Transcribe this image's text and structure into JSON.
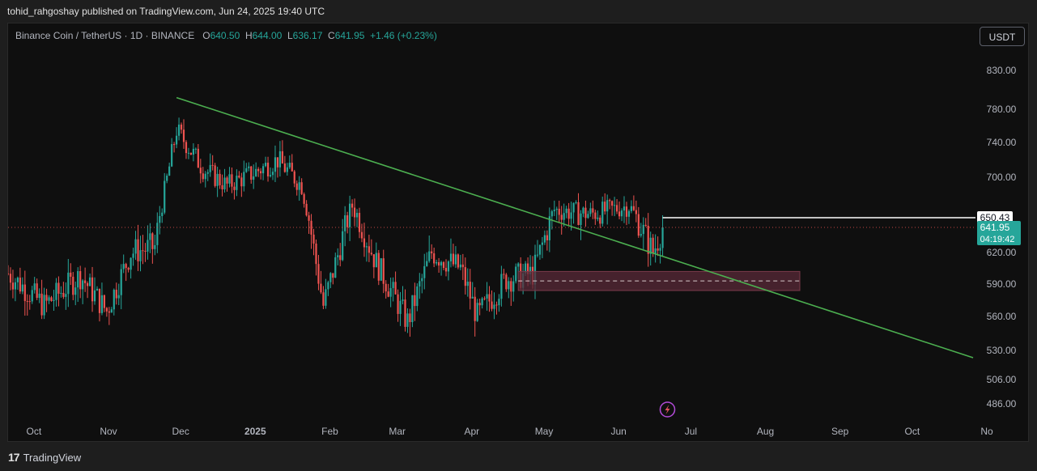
{
  "header": {
    "published_text": "tohid_rahgoshay published on TradingView.com, Jun 24, 2025 19:40 UTC"
  },
  "legend": {
    "symbol": "Binance Coin / TetherUS · 1D · BINANCE",
    "open_label": "O",
    "open": "640.50",
    "high_label": "H",
    "high": "644.00",
    "low_label": "L",
    "low": "636.17",
    "close_label": "C",
    "close": "641.95",
    "change": "+1.46 (+0.23%)"
  },
  "currency_button": "USDT",
  "footer": {
    "logo_mark": "17",
    "logo_text": "TradingView"
  },
  "colors": {
    "up": "#26a69a",
    "down": "#ef5350",
    "trendline": "#4caf50",
    "zone_fill": "#5a2a38",
    "background": "#0f0f0f",
    "price_tag": "#26a69a"
  },
  "chart_data": {
    "type": "candlestick",
    "title": "Binance Coin / TetherUS · 1D · BINANCE",
    "x_tick_labels": [
      "Oct",
      "Nov",
      "Dec",
      "2025",
      "Feb",
      "Mar",
      "Apr",
      "May",
      "Jun",
      "Jul",
      "Aug",
      "Sep",
      "Oct",
      "No"
    ],
    "y_tick_labels": [
      "830.00",
      "780.00",
      "740.00",
      "700.00",
      "620.00",
      "590.00",
      "560.00",
      "530.00",
      "506.00",
      "486.00"
    ],
    "y_range": [
      470,
      860
    ],
    "x_range": [
      "2024-09-25",
      "2025-11-01"
    ],
    "close_series_monthly": [
      {
        "date": "2024-09-25",
        "value": 600
      },
      {
        "date": "2024-10-10",
        "value": 570
      },
      {
        "date": "2024-10-25",
        "value": 598
      },
      {
        "date": "2024-11-05",
        "value": 565
      },
      {
        "date": "2024-11-15",
        "value": 620
      },
      {
        "date": "2024-11-25",
        "value": 625
      },
      {
        "date": "2024-12-04",
        "value": 755
      },
      {
        "date": "2024-12-15",
        "value": 710
      },
      {
        "date": "2024-12-25",
        "value": 690
      },
      {
        "date": "2025-01-05",
        "value": 705
      },
      {
        "date": "2025-01-15",
        "value": 720
      },
      {
        "date": "2025-01-25",
        "value": 690
      },
      {
        "date": "2025-02-03",
        "value": 570
      },
      {
        "date": "2025-02-15",
        "value": 665
      },
      {
        "date": "2025-02-25",
        "value": 610
      },
      {
        "date": "2025-03-10",
        "value": 555
      },
      {
        "date": "2025-03-20",
        "value": 620
      },
      {
        "date": "2025-04-01",
        "value": 605
      },
      {
        "date": "2025-04-08",
        "value": 560
      },
      {
        "date": "2025-04-20",
        "value": 595
      },
      {
        "date": "2025-05-01",
        "value": 600
      },
      {
        "date": "2025-05-10",
        "value": 660
      },
      {
        "date": "2025-05-25",
        "value": 655
      },
      {
        "date": "2025-06-10",
        "value": 665
      },
      {
        "date": "2025-06-20",
        "value": 620
      },
      {
        "date": "2025-06-24",
        "value": 641.95
      }
    ],
    "trendline": {
      "start": {
        "date": "2024-12-04",
        "value": 795
      },
      "end": {
        "date": "2025-10-31",
        "value": 524
      }
    },
    "horizontal_level": {
      "value": 650.43,
      "label": "650.43",
      "from_date": "2025-06-24"
    },
    "zone": {
      "from_date": "2025-04-25",
      "to_date": "2025-08-20",
      "low": 584,
      "high": 602,
      "mid": 593
    },
    "last_price": {
      "value": 641.95,
      "label": "641.95",
      "countdown": "04:19:42"
    }
  }
}
